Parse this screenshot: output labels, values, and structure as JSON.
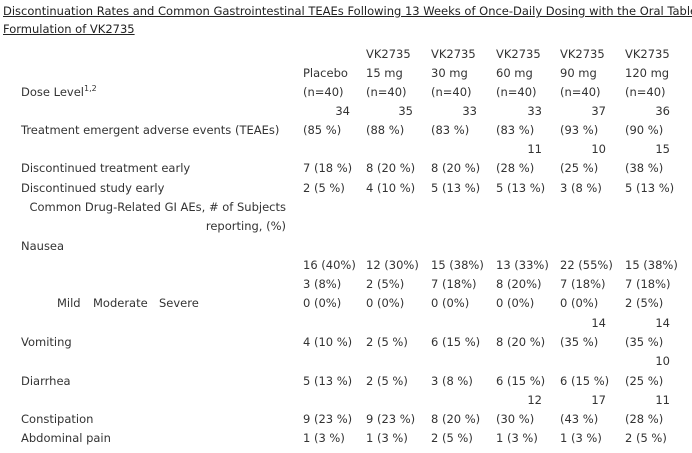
{
  "title": {
    "line1": "Discontinuation Rates and Common Gastrointestinal TEAEs Following 13 Weeks of Once-Daily Dosing with the Oral Tablet",
    "line2": "Formulation of VK2735"
  },
  "header": {
    "dose_level_label": "Dose Level",
    "dose_level_sup": "1,2",
    "columns": [
      {
        "l1": "",
        "l2": "Placebo",
        "l3": "(n=40)"
      },
      {
        "l1": "VK2735",
        "l2": "15 mg",
        "l3": "(n=40)"
      },
      {
        "l1": "VK2735",
        "l2": "30 mg",
        "l3": "(n=40)"
      },
      {
        "l1": "VK2735",
        "l2": "60 mg",
        "l3": "(n=40)"
      },
      {
        "l1": "VK2735",
        "l2": "90 mg",
        "l3": "(n=40)"
      },
      {
        "l1": "VK2735",
        "l2": "120 mg",
        "l3": "(n=40)"
      }
    ]
  },
  "rows": {
    "teae": {
      "label": "Treatment emergent adverse events (TEAEs)",
      "counts": [
        "34",
        "35",
        "33",
        "33",
        "37",
        "36"
      ],
      "pcts": [
        "(85 %)",
        "(88 %)",
        "(83 %)",
        "(83 %)",
        "(93 %)",
        "(90 %)"
      ]
    },
    "disc_treatment": {
      "label": "Discontinued treatment early",
      "top": [
        "",
        "",
        "",
        "11",
        "10",
        "15"
      ],
      "values": [
        "7 (18 %)",
        "8 (20 %)",
        "8 (20 %)",
        "(28 %)",
        "(25 %)",
        "(38 %)"
      ]
    },
    "disc_study": {
      "label": "Discontinued study early",
      "values": [
        "2 (5 %)",
        "4 (10 %)",
        "5 (13 %)",
        "5 (13 %)",
        "3 (8 %)",
        "5 (13 %)"
      ]
    },
    "gi_header": {
      "line1": "Common Drug-Related GI AEs, # of Subjects",
      "line2": "reporting, (%)"
    },
    "nausea": {
      "label": "Nausea",
      "severity": [
        "Mild",
        "Moderate",
        "Severe"
      ],
      "mild": [
        "16 (40%)",
        "12 (30%)",
        "15 (38%)",
        "13 (33%)",
        "22 (55%)",
        "15 (38%)"
      ],
      "moderate": [
        "3 (8%)",
        "2 (5%)",
        "7 (18%)",
        "8 (20%)",
        "7 (18%)",
        "7 (18%)"
      ],
      "severe": [
        "0 (0%)",
        "0 (0%)",
        "0 (0%)",
        "0 (0%)",
        "0 (0%)",
        "2 (5%)"
      ]
    },
    "vomiting": {
      "label": "Vomiting",
      "top": [
        "",
        "",
        "",
        "",
        "14",
        "14"
      ],
      "values": [
        "4 (10 %)",
        "2 (5 %)",
        "6 (15 %)",
        "8 (20 %)",
        "(35 %)",
        "(35 %)"
      ]
    },
    "diarrhea": {
      "label": "Diarrhea",
      "top": [
        "",
        "",
        "",
        "",
        "",
        "10"
      ],
      "values": [
        "5 (13 %)",
        "2 (5 %)",
        "3 (8 %)",
        "6 (15 %)",
        "6 (15 %)",
        "(25 %)"
      ]
    },
    "constipation": {
      "label": "Constipation",
      "top": [
        "",
        "",
        "",
        "12",
        "17",
        "11"
      ],
      "values": [
        "9 (23 %)",
        "9 (23 %)",
        "8 (20 %)",
        "(30 %)",
        "(43 %)",
        "(28 %)"
      ]
    },
    "abdominal": {
      "label": "Abdominal pain",
      "values": [
        "1 (3 %)",
        "1 (3 %)",
        "2 (5 %)",
        "1 (3 %)",
        "1 (3 %)",
        "2 (5 %)"
      ]
    }
  }
}
